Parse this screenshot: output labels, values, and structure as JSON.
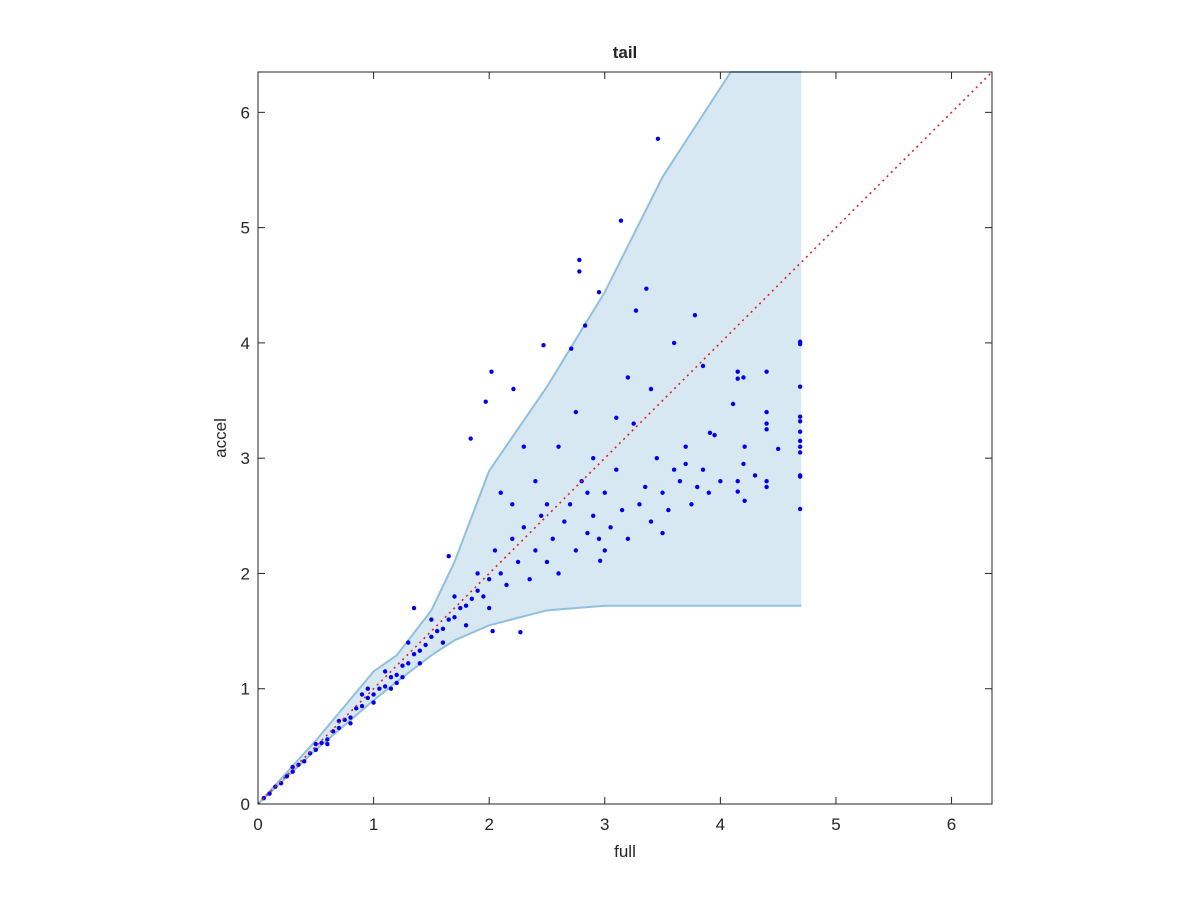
{
  "chart_data": {
    "type": "scatter",
    "title": "tail",
    "x_label": "full",
    "y_label": "accel",
    "xlim": [
      0,
      6.35
    ],
    "ylim": [
      0,
      6.35
    ],
    "xticks": [
      0,
      1,
      2,
      3,
      4,
      5,
      6
    ],
    "yticks": [
      0,
      1,
      2,
      3,
      4,
      5,
      6
    ],
    "band": {
      "color": "#d8e8f3",
      "line_color": "#90c0de",
      "x": [
        0,
        0.5,
        1,
        1.2,
        1.5,
        1.7,
        2,
        2.5,
        3,
        3.5,
        4.09,
        4.7
      ],
      "upper": [
        0,
        0.55,
        1.15,
        1.29,
        1.68,
        2.1,
        2.89,
        3.62,
        4.44,
        5.44,
        6.35,
        6.35
      ],
      "lower": [
        0,
        0.47,
        0.9,
        1.06,
        1.29,
        1.42,
        1.55,
        1.68,
        1.72,
        1.72,
        1.72,
        1.72
      ]
    },
    "diagonal": {
      "color": "#e02020",
      "x": [
        0,
        6.35
      ],
      "values": [
        0,
        6.35
      ]
    },
    "points": {
      "color": "#0000ee",
      "x": [
        0.05,
        0.1,
        0.15,
        0.2,
        0.25,
        0.3,
        0.35,
        0.4,
        0.45,
        0.5,
        0.55,
        0.6,
        0.65,
        0.7,
        0.75,
        0.8,
        0.85,
        0.9,
        0.95,
        1.0,
        1.05,
        1.1,
        1.15,
        1.2,
        1.25,
        1.3,
        1.35,
        1.4,
        1.45,
        1.5,
        1.55,
        1.6,
        1.65,
        1.7,
        1.75,
        1.8,
        1.85,
        1.9,
        1.95,
        2.0,
        0.3,
        0.5,
        0.7,
        0.9,
        1.1,
        1.3,
        1.5,
        1.7,
        1.9,
        0.6,
        0.8,
        1.0,
        1.2,
        1.4,
        1.6,
        1.8,
        2.0,
        1.35,
        1.65,
        1.15,
        0.95,
        1.25,
        2.05,
        2.1,
        2.15,
        2.2,
        2.25,
        2.3,
        2.35,
        2.4,
        2.45,
        2.5,
        2.55,
        2.6,
        2.65,
        2.7,
        2.75,
        2.8,
        2.85,
        2.9,
        2.95,
        3.0,
        3.05,
        3.1,
        3.15,
        3.2,
        3.25,
        3.3,
        3.35,
        3.4,
        3.45,
        3.5,
        3.55,
        3.6,
        3.65,
        3.7,
        3.75,
        3.8,
        3.85,
        3.9,
        3.95,
        4.0,
        2.2,
        2.4,
        2.6,
        2.75,
        2.9,
        3.2,
        3.4,
        3.6,
        3.85,
        2.3,
        2.1,
        2.5,
        3.0,
        3.5,
        4.4,
        4.4,
        4.4,
        4.4,
        4.4,
        4.4,
        4.69,
        4.69,
        4.69,
        4.69,
        4.69,
        2.85,
        3.1,
        3.7,
        4.2,
        4.5,
        4.3,
        4.2,
        3.46,
        3.14,
        2.78,
        2.78,
        2.95,
        3.36,
        3.27,
        2.83,
        3.78,
        2.47,
        2.71,
        2.02,
        2.21,
        1.97,
        1.84,
        4.69,
        4.69,
        4.15,
        4.15,
        4.11,
        3.91,
        4.21,
        4.21,
        4.69,
        4.69,
        4.69,
        4.69,
        4.69,
        4.15,
        4.15,
        2.96,
        2.03,
        2.27
      ],
      "values": [
        0.05,
        0.09,
        0.15,
        0.18,
        0.24,
        0.28,
        0.34,
        0.37,
        0.44,
        0.47,
        0.53,
        0.56,
        0.63,
        0.66,
        0.73,
        0.75,
        0.83,
        0.85,
        0.92,
        0.95,
        1.0,
        1.02,
        1.1,
        1.12,
        1.2,
        1.22,
        1.3,
        1.33,
        1.38,
        1.45,
        1.5,
        1.52,
        1.6,
        1.62,
        1.7,
        1.72,
        1.78,
        1.85,
        1.8,
        1.95,
        0.32,
        0.52,
        0.72,
        0.95,
        1.15,
        1.4,
        1.6,
        1.8,
        2.0,
        0.52,
        0.7,
        0.88,
        1.05,
        1.22,
        1.4,
        1.55,
        1.7,
        1.7,
        2.15,
        1.0,
        1.0,
        1.1,
        2.2,
        2.0,
        1.9,
        2.3,
        2.1,
        2.4,
        1.95,
        2.2,
        2.5,
        2.1,
        2.3,
        2.0,
        2.45,
        2.6,
        2.2,
        2.8,
        2.35,
        2.5,
        2.3,
        2.7,
        2.4,
        2.9,
        2.55,
        2.3,
        3.3,
        2.6,
        2.75,
        2.45,
        3.0,
        2.7,
        2.55,
        2.9,
        2.8,
        3.1,
        2.6,
        2.75,
        2.9,
        2.7,
        3.2,
        2.8,
        2.6,
        2.8,
        3.1,
        3.4,
        3.0,
        3.7,
        3.6,
        4.0,
        3.8,
        3.1,
        2.7,
        2.6,
        2.2,
        2.35,
        2.8,
        3.3,
        3.75,
        3.4,
        2.75,
        3.25,
        3.05,
        3.1,
        3.36,
        2.85,
        4.01,
        2.7,
        3.35,
        2.95,
        2.95,
        3.08,
        2.85,
        3.7,
        5.77,
        5.06,
        4.72,
        4.62,
        4.44,
        4.47,
        4.28,
        4.15,
        4.24,
        3.98,
        3.95,
        3.75,
        3.6,
        3.49,
        3.17,
        3.99,
        3.62,
        3.75,
        3.69,
        3.47,
        3.22,
        3.1,
        2.63,
        2.56,
        3.32,
        3.23,
        3.15,
        2.84,
        2.8,
        2.71,
        2.11,
        1.5,
        1.49
      ]
    }
  }
}
